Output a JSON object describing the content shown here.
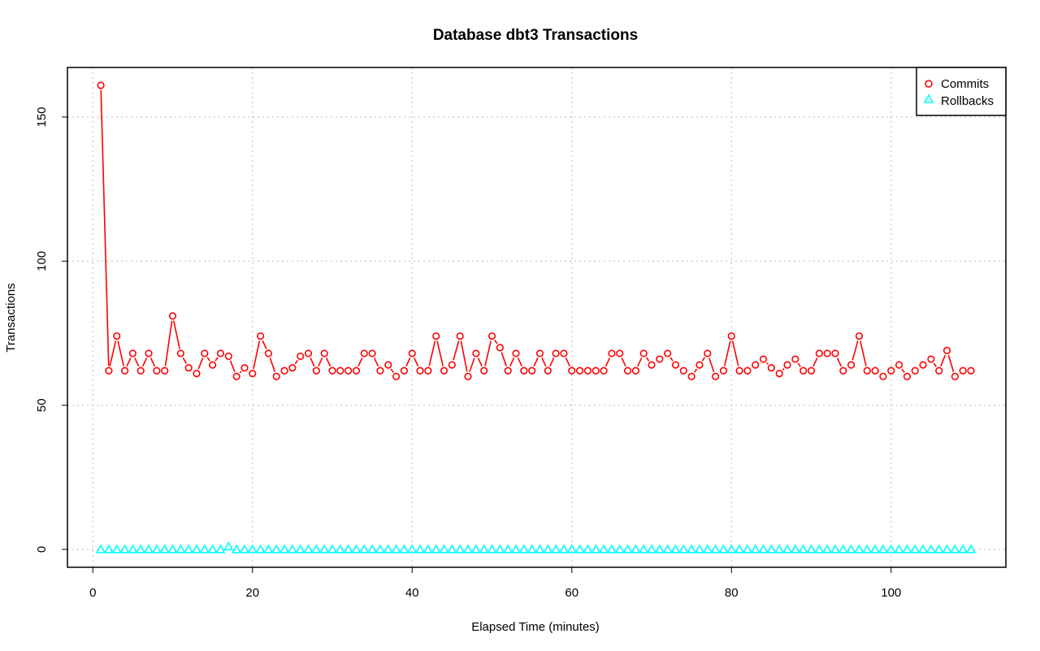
{
  "chart_data": {
    "type": "line",
    "title": "Database dbt3 Transactions",
    "xlabel": "Elapsed Time (minutes)",
    "ylabel": "Transactions",
    "xlim": [
      1,
      110
    ],
    "ylim": [
      0,
      161
    ],
    "x_ticks": [
      0,
      20,
      40,
      60,
      80,
      100
    ],
    "y_ticks": [
      0,
      50,
      100,
      150
    ],
    "grid": true,
    "legend_position": "top-right",
    "x": [
      1,
      2,
      3,
      4,
      5,
      6,
      7,
      8,
      9,
      10,
      11,
      12,
      13,
      14,
      15,
      16,
      17,
      18,
      19,
      20,
      21,
      22,
      23,
      24,
      25,
      26,
      27,
      28,
      29,
      30,
      31,
      32,
      33,
      34,
      35,
      36,
      37,
      38,
      39,
      40,
      41,
      42,
      43,
      44,
      45,
      46,
      47,
      48,
      49,
      50,
      51,
      52,
      53,
      54,
      55,
      56,
      57,
      58,
      59,
      60,
      61,
      62,
      63,
      64,
      65,
      66,
      67,
      68,
      69,
      70,
      71,
      72,
      73,
      74,
      75,
      76,
      77,
      78,
      79,
      80,
      81,
      82,
      83,
      84,
      85,
      86,
      87,
      88,
      89,
      90,
      91,
      92,
      93,
      94,
      95,
      96,
      97,
      98,
      99,
      100,
      101,
      102,
      103,
      104,
      105,
      106,
      107,
      108,
      109,
      110
    ],
    "series": [
      {
        "name": "Commits",
        "color": "#ff0000",
        "marker": "circle",
        "values": [
          161,
          62,
          74,
          62,
          68,
          62,
          68,
          62,
          62,
          81,
          68,
          63,
          61,
          68,
          64,
          68,
          67,
          60,
          63,
          61,
          74,
          68,
          60,
          62,
          63,
          67,
          68,
          62,
          68,
          62,
          62,
          62,
          62,
          68,
          68,
          62,
          64,
          60,
          62,
          68,
          62,
          62,
          74,
          62,
          64,
          74,
          60,
          68,
          62,
          74,
          70,
          62,
          68,
          62,
          62,
          68,
          62,
          68,
          68,
          62,
          62,
          62,
          62,
          62,
          68,
          68,
          62,
          62,
          68,
          64,
          66,
          68,
          64,
          62,
          60,
          64,
          68,
          60,
          62,
          74,
          62,
          62,
          64,
          66,
          63,
          61,
          64,
          66,
          62,
          62,
          68,
          68,
          68,
          62,
          64,
          74,
          62,
          62,
          60,
          62,
          64,
          60,
          62,
          64,
          66,
          62,
          69,
          60,
          62,
          62
        ]
      },
      {
        "name": "Rollbacks",
        "color": "#00ffff",
        "marker": "triangle",
        "values": [
          0,
          0,
          0,
          0,
          0,
          0,
          0,
          0,
          0,
          0,
          0,
          0,
          0,
          0,
          0,
          0,
          1,
          0,
          0,
          0,
          0,
          0,
          0,
          0,
          0,
          0,
          0,
          0,
          0,
          0,
          0,
          0,
          0,
          0,
          0,
          0,
          0,
          0,
          0,
          0,
          0,
          0,
          0,
          0,
          0,
          0,
          0,
          0,
          0,
          0,
          0,
          0,
          0,
          0,
          0,
          0,
          0,
          0,
          0,
          0,
          0,
          0,
          0,
          0,
          0,
          0,
          0,
          0,
          0,
          0,
          0,
          0,
          0,
          0,
          0,
          0,
          0,
          0,
          0,
          0,
          0,
          0,
          0,
          0,
          0,
          0,
          0,
          0,
          0,
          0,
          0,
          0,
          0,
          0,
          0,
          0,
          0,
          0,
          0,
          0,
          0,
          0,
          0,
          0,
          0,
          0,
          0,
          0,
          0,
          0
        ]
      }
    ]
  }
}
